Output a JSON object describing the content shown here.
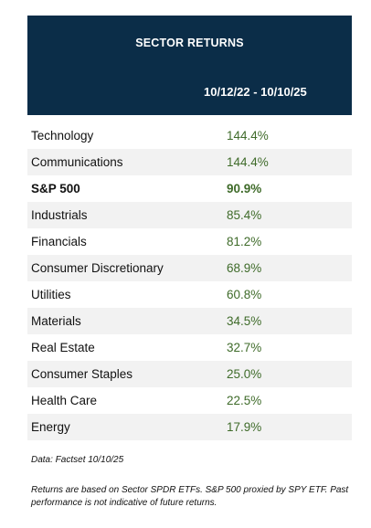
{
  "header": {
    "title": "SECTOR RETURNS",
    "period": "10/12/22 - 10/10/25"
  },
  "rows": [
    {
      "name": "Technology",
      "value": "144.4%"
    },
    {
      "name": "Communications",
      "value": "144.4%"
    },
    {
      "name": "S&P 500",
      "value": "90.9%"
    },
    {
      "name": "Industrials",
      "value": "85.4%"
    },
    {
      "name": "Financials",
      "value": "81.2%"
    },
    {
      "name": "Consumer Discretionary",
      "value": "68.9%"
    },
    {
      "name": "Utilities",
      "value": "60.8%"
    },
    {
      "name": "Materials",
      "value": "34.5%"
    },
    {
      "name": "Real Estate",
      "value": "32.7%"
    },
    {
      "name": "Consumer Staples",
      "value": "25.0%"
    },
    {
      "name": "Health Care",
      "value": "22.5%"
    },
    {
      "name": "Energy",
      "value": "17.9%"
    }
  ],
  "source": "Data: Factset   10/10/25",
  "footnote": "Returns are based on Sector SPDR  ETFs. S&P 500 proxied by SPY ETF. Past performance is not indicative of future returns.",
  "colors": {
    "header_bg": "#0b2d48",
    "value_text": "#3f6b2a",
    "alt_row_bg": "#f2f2f2"
  }
}
